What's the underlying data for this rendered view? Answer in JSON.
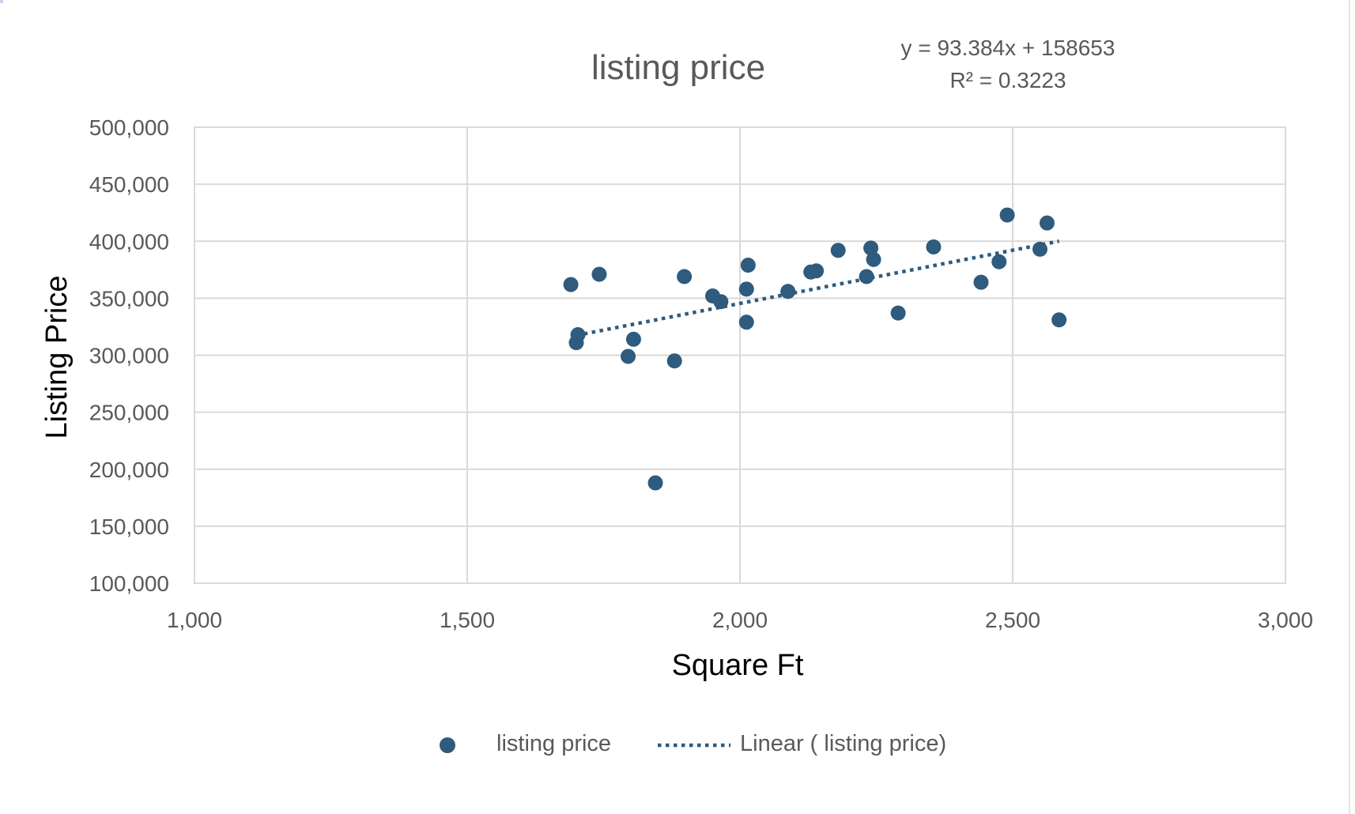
{
  "chart_data": {
    "type": "scatter",
    "title": "listing price",
    "xlabel": "Square Ft",
    "ylabel": "Listing Price",
    "xlim": [
      1000,
      3000
    ],
    "ylim": [
      100000,
      500000
    ],
    "x_ticks": [
      1000,
      1500,
      2000,
      2500,
      3000
    ],
    "y_ticks": [
      100000,
      150000,
      200000,
      250000,
      300000,
      350000,
      400000,
      450000,
      500000
    ],
    "x_tick_labels": [
      "1,000",
      "1,500",
      "2,000",
      "2,500",
      "3,000"
    ],
    "y_tick_labels": [
      "100,000",
      "150,000",
      "200,000",
      "250,000",
      "300,000",
      "350,000",
      "400,000",
      "450,000",
      "500,000"
    ],
    "grid": true,
    "legend_position": "bottom",
    "series": [
      {
        "name": "listing price",
        "kind": "scatter",
        "color": "#2e5b7e",
        "points": [
          {
            "x": 1690,
            "y": 362000
          },
          {
            "x": 1700,
            "y": 311000
          },
          {
            "x": 1703,
            "y": 318000
          },
          {
            "x": 1742,
            "y": 371000
          },
          {
            "x": 1795,
            "y": 299000
          },
          {
            "x": 1805,
            "y": 314000
          },
          {
            "x": 1845,
            "y": 188000
          },
          {
            "x": 1880,
            "y": 295000
          },
          {
            "x": 1898,
            "y": 369000
          },
          {
            "x": 1950,
            "y": 352000
          },
          {
            "x": 1965,
            "y": 347000
          },
          {
            "x": 2012,
            "y": 358000
          },
          {
            "x": 2012,
            "y": 329000
          },
          {
            "x": 2015,
            "y": 379000
          },
          {
            "x": 2088,
            "y": 356000
          },
          {
            "x": 2130,
            "y": 373000
          },
          {
            "x": 2140,
            "y": 374000
          },
          {
            "x": 2180,
            "y": 392000
          },
          {
            "x": 2232,
            "y": 369000
          },
          {
            "x": 2240,
            "y": 394000
          },
          {
            "x": 2245,
            "y": 384000
          },
          {
            "x": 2290,
            "y": 337000
          },
          {
            "x": 2355,
            "y": 395000
          },
          {
            "x": 2442,
            "y": 364000
          },
          {
            "x": 2475,
            "y": 382000
          },
          {
            "x": 2490,
            "y": 423000
          },
          {
            "x": 2550,
            "y": 393000
          },
          {
            "x": 2563,
            "y": 416000
          },
          {
            "x": 2585,
            "y": 331000
          }
        ]
      },
      {
        "name": "Linear ( listing price)",
        "kind": "trendline",
        "style": "dotted",
        "color": "#2e5b7e",
        "slope": 93.384,
        "intercept": 158653,
        "x_range": [
          1700,
          2585
        ]
      }
    ],
    "annotations": [
      {
        "id": "equation",
        "text": "y = 93.384x + 158653"
      },
      {
        "id": "r_squared",
        "text": "R² = 0.3223"
      }
    ]
  },
  "legend": {
    "items": [
      {
        "label": "listing price",
        "marker": "dot",
        "color": "#2e5b7e"
      },
      {
        "label": "Linear ( listing price)",
        "marker": "dotted-line",
        "color": "#2e5b7e"
      }
    ]
  },
  "colors": {
    "marker": "#2e5b7e",
    "gridline": "#d9d9d9",
    "axis_text": "#595959",
    "title_text": "#595959",
    "axis_title_text": "#000000"
  }
}
